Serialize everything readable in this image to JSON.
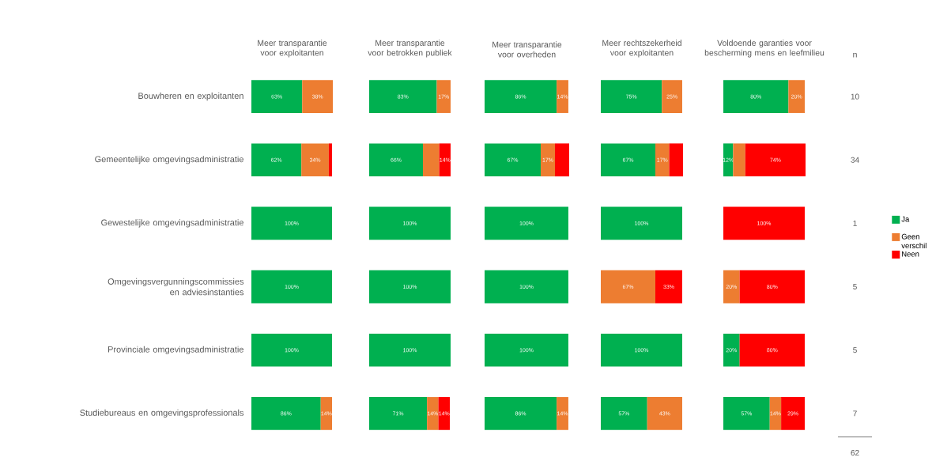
{
  "chart_data": [
    {
      "type": "bar",
      "orientation": "horizontal",
      "stacked": true,
      "title": "Meer transparantie voor exploitanten",
      "tick_labels": "y",
      "xlim": [
        0,
        101
      ],
      "categories": [
        "Bouwheren en exploitanten",
        "Gemeentelijke omgevingsadministratie",
        "Gewestelijke omgevingsadministratie",
        "Omgevingsvergunningscommissies en adviesinstanties",
        "Provinciale omgevingsadministratie",
        "Studiebureaus en omgevingsprofessionals"
      ],
      "series": [
        {
          "color": "#00b050",
          "values": [
            63,
            62,
            100,
            100,
            100,
            86
          ],
          "value_labels": [
            "63%",
            "62%",
            "100%",
            "100%",
            "100%",
            "86%"
          ]
        },
        {
          "color": "#ed7d31",
          "values": [
            38,
            34,
            null,
            null,
            null,
            14
          ],
          "value_labels": [
            "38%",
            "34%",
            null,
            null,
            null,
            "14%"
          ]
        },
        {
          "color": "#ff0000",
          "values": [
            null,
            4,
            null,
            null,
            null,
            null
          ]
        }
      ]
    },
    {
      "type": "bar",
      "orientation": "horizontal",
      "stacked": true,
      "title": "Meer transparantie voor betrokken publiek",
      "tick_labels": false,
      "xlim": [
        0,
        100
      ],
      "series": [
        {
          "color": "#00b050",
          "values": [
            83,
            66,
            100,
            100,
            100,
            71
          ],
          "value_labels": [
            "83%",
            "66%",
            "100%",
            "100%",
            "100%",
            "71%"
          ]
        },
        {
          "color": "#ed7d31",
          "values": [
            17,
            20,
            null,
            null,
            null,
            14
          ],
          "value_labels": [
            "17%",
            null,
            null,
            null,
            null,
            "14%"
          ]
        },
        {
          "color": "#ff0000",
          "values": [
            null,
            14,
            null,
            null,
            null,
            14
          ],
          "value_labels": [
            null,
            "14%",
            null,
            null,
            null,
            "14%"
          ]
        }
      ]
    },
    {
      "type": "bar",
      "orientation": "horizontal",
      "stacked": true,
      "title": "Meer transparantie voor overheden",
      "tick_labels": false,
      "xlim": [
        0,
        101
      ],
      "series": [
        {
          "color": "#00b050",
          "values": [
            86,
            67,
            100,
            100,
            100,
            86
          ],
          "value_labels": [
            "86%",
            "67%",
            "100%",
            "100%",
            "100%",
            "86%"
          ]
        },
        {
          "color": "#ed7d31",
          "values": [
            14,
            17,
            null,
            null,
            null,
            14
          ],
          "value_labels": [
            "14%",
            "17%",
            null,
            null,
            null,
            "14%"
          ]
        },
        {
          "color": "#ff0000",
          "values": [
            null,
            17,
            null,
            null,
            null,
            null
          ]
        }
      ]
    },
    {
      "type": "bar",
      "orientation": "horizontal",
      "stacked": true,
      "title": "Meer rechtszekerheid voor exploitanten",
      "tick_labels": false,
      "xlim": [
        0,
        101
      ],
      "series": [
        {
          "color": "#00b050",
          "values": [
            75,
            67,
            100,
            null,
            100,
            57
          ],
          "value_labels": [
            "75%",
            "67%",
            "100%",
            null,
            "100%",
            "57%"
          ]
        },
        {
          "color": "#ed7d31",
          "values": [
            25,
            17,
            null,
            67,
            null,
            43
          ],
          "value_labels": [
            "25%",
            "17%",
            null,
            "67%",
            null,
            "43%"
          ]
        },
        {
          "color": "#ff0000",
          "values": [
            null,
            17,
            null,
            33,
            null,
            null
          ],
          "value_labels": [
            null,
            null,
            null,
            "33%",
            null,
            null
          ]
        }
      ]
    },
    {
      "type": "bar",
      "orientation": "horizontal",
      "stacked": true,
      "title": "Voldoende garanties voor bescherming mens en leefmilieu",
      "tick_labels": false,
      "xlim": [
        0,
        101
      ],
      "legend": "right",
      "series": [
        {
          "name": "Ja",
          "color": "#00b050",
          "values": [
            80,
            12,
            null,
            null,
            20,
            57
          ],
          "value_labels": [
            "80%",
            "12%",
            null,
            null,
            "20%",
            "57%"
          ]
        },
        {
          "name": "Geen verschil",
          "color": "#ed7d31",
          "values": [
            20,
            15,
            null,
            20,
            null,
            14
          ],
          "value_labels": [
            "20%",
            null,
            null,
            "20%",
            null,
            "14%"
          ]
        },
        {
          "name": "Neen",
          "color": "#ff0000",
          "values": [
            null,
            74,
            100,
            80,
            80,
            29
          ],
          "value_labels": [
            null,
            "74%",
            "100%",
            "80%",
            "80%",
            "29%"
          ]
        }
      ]
    },
    {
      "type": "other",
      "title": "n",
      "data_labels": true,
      "values": [
        10,
        34,
        1,
        5,
        5,
        7
      ],
      "annotations": [
        "62"
      ]
    }
  ]
}
